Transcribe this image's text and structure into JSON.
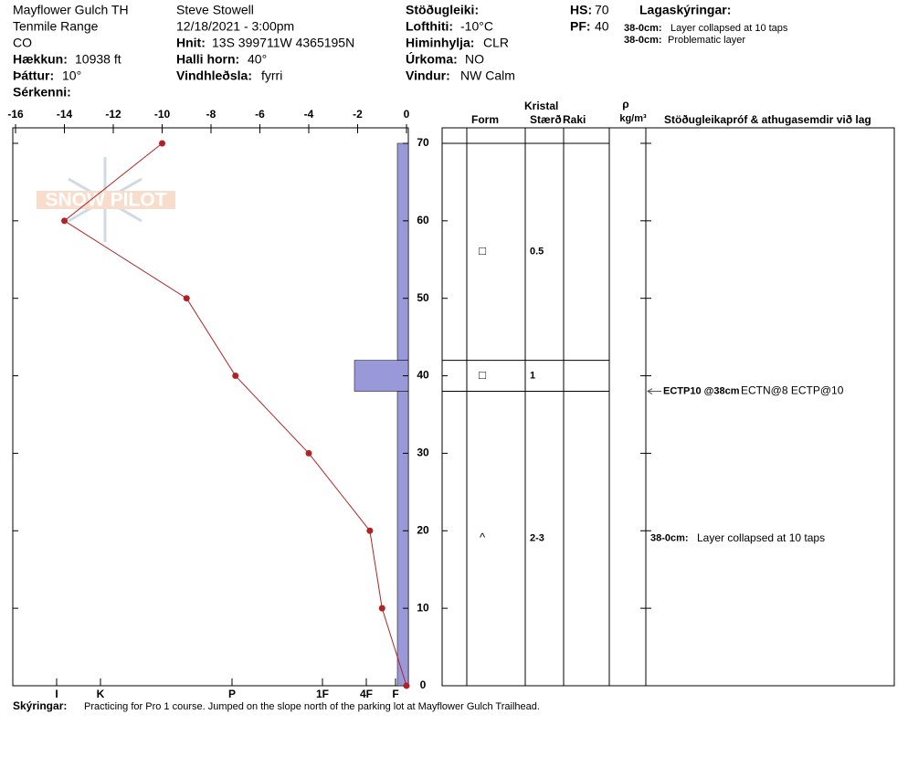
{
  "header": {
    "location": [
      "Mayflower Gulch TH",
      "Tenmile Range",
      "CO"
    ],
    "elevation": {
      "label": "Hækkun:",
      "value": "10938 ft"
    },
    "aspect": {
      "label": "Þáttur:",
      "value": "10°"
    },
    "features": {
      "label": "Sérkenni:"
    },
    "observer": "Steve Stowell",
    "datetime": "12/18/2021 - 3:00pm",
    "coords": {
      "label": "Hnit:",
      "value": "13S 399711W 4365195N"
    },
    "slope": {
      "label": "Halli horn:",
      "value": "40°"
    },
    "wind_loading": {
      "label": "Vindhleðsla:",
      "value": "fyrri"
    },
    "stability": {
      "label": "Stöðugleiki:"
    },
    "air_temp": {
      "label": "Lofthiti:",
      "value": "-10°C"
    },
    "sky": {
      "label": "Himinhylja:",
      "value": "CLR"
    },
    "precip": {
      "label": "Úrkoma:",
      "value": "NO"
    },
    "wind": {
      "label": "Vindur:",
      "value": "NW Calm"
    },
    "hs": {
      "label": "HS:",
      "value": "70"
    },
    "pf": {
      "label": "PF:",
      "value": "40"
    },
    "legend_title": "Lagaskýringar:",
    "legend": [
      {
        "label": "38-0cm:",
        "text": "Layer collapsed at 10 taps"
      },
      {
        "label": "38-0cm:",
        "text": "Problematic layer"
      }
    ],
    "watermark": "SNOW PILOT"
  },
  "chart_data": {
    "type": "snowpit",
    "xlim": [
      -16,
      0
    ],
    "xticks": [
      -16,
      -14,
      -12,
      -10,
      -8,
      -6,
      -4,
      -2,
      0
    ],
    "ylim": [
      0,
      72
    ],
    "yticks": [
      0,
      10,
      20,
      30,
      40,
      50,
      60,
      70
    ],
    "temperature": {
      "depths": [
        70,
        60,
        50,
        40,
        30,
        20,
        10,
        0
      ],
      "values": [
        -10,
        -14,
        -9,
        -7,
        -4,
        -1.5,
        -1,
        0
      ],
      "color": "#b22222"
    },
    "hardness": {
      "xlim": [
        0,
        433
      ],
      "ticks": [
        {
          "value": 14,
          "label": "F"
        },
        {
          "value": 46,
          "label": "4F"
        },
        {
          "value": 94,
          "label": "1F"
        },
        {
          "value": 193,
          "label": "P"
        },
        {
          "value": 337,
          "label": "K"
        },
        {
          "value": 385,
          "label": "I"
        }
      ],
      "layers": [
        {
          "top": 70,
          "bottom": 42,
          "value": 12
        },
        {
          "top": 42,
          "bottom": 38,
          "value": 59
        },
        {
          "top": 38,
          "bottom": 0,
          "value": 12
        }
      ],
      "color": "#9999d9"
    },
    "columns": {
      "crystal": "Kristal",
      "form": "Form",
      "size": "Stærð",
      "moisture": "Raki",
      "rho": "ρ",
      "density_unit": "kg/m³",
      "comments": "Stöðugleikapróf & athugasemdir við lag"
    },
    "grains": [
      {
        "depth": 56,
        "form": "□",
        "size": "0.5"
      },
      {
        "depth": 40,
        "form": "□",
        "size": "1"
      },
      {
        "depth": 19,
        "form": "^",
        "size": "2-3"
      }
    ],
    "tests": [
      {
        "depth": 38,
        "label": "ECTP10 @38cm",
        "result": "ECTN@8 ECTP@10"
      }
    ],
    "comments": [
      {
        "depth": 19,
        "label": "38-0cm:",
        "text": "Layer collapsed at 10 taps"
      }
    ],
    "notes": {
      "label": "Skýringar:",
      "text": "Practicing for Pro 1 course. Jumped on the slope north of the parking lot at Mayflower Gulch Trailhead."
    }
  }
}
